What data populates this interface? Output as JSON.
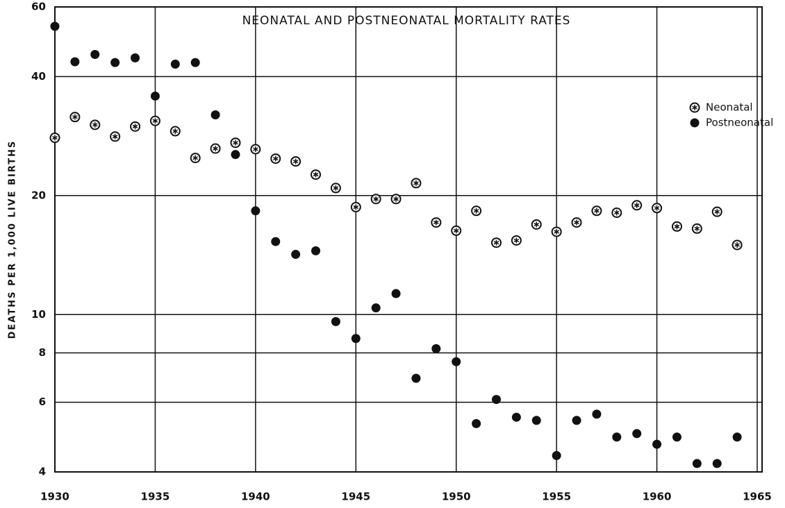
{
  "chart_data": {
    "type": "scatter",
    "title": "NEONATAL AND POSTNEONATAL MORTALITY RATES",
    "ylabel": "DEATHS PER 1,000 LIVE BIRTHS",
    "x": [
      1930,
      1931,
      1932,
      1933,
      1934,
      1935,
      1936,
      1937,
      1938,
      1939,
      1940,
      1941,
      1942,
      1943,
      1944,
      1945,
      1946,
      1947,
      1948,
      1949,
      1950,
      1951,
      1952,
      1953,
      1954,
      1955,
      1956,
      1957,
      1958,
      1959,
      1960,
      1961,
      1962,
      1963,
      1964
    ],
    "series": [
      {
        "name": "Neonatal",
        "color": "#111111",
        "marker": "open",
        "values": [
          28.0,
          31.6,
          30.2,
          28.2,
          29.9,
          30.9,
          29.1,
          24.9,
          26.3,
          27.2,
          26.2,
          24.8,
          24.4,
          22.6,
          20.9,
          18.7,
          19.6,
          19.6,
          21.5,
          17.1,
          16.3,
          18.3,
          15.2,
          15.4,
          16.9,
          16.2,
          17.1,
          18.3,
          18.1,
          18.9,
          18.6,
          16.7,
          16.5,
          18.2,
          15.0
        ]
      },
      {
        "name": "Postneonatal",
        "color": "#111111",
        "marker": "filled",
        "values": [
          53.6,
          43.6,
          45.5,
          43.4,
          44.6,
          35.7,
          43.0,
          43.4,
          32.0,
          25.4,
          18.3,
          15.3,
          14.2,
          14.5,
          9.6,
          8.7,
          10.4,
          11.3,
          6.9,
          8.2,
          7.6,
          5.3,
          6.1,
          5.5,
          5.4,
          4.4,
          5.4,
          5.6,
          4.9,
          5.0,
          4.7,
          4.9,
          4.2,
          4.2,
          4.9
        ]
      }
    ],
    "xlim": [
      1930,
      1965
    ],
    "xticks": [
      1930,
      1935,
      1940,
      1945,
      1950,
      1955,
      1960,
      1965
    ],
    "ylim": [
      4,
      60
    ],
    "yticks": [
      4,
      6,
      8,
      10,
      20,
      40,
      60
    ],
    "log_y": true,
    "grid": true,
    "legend": "upper right"
  }
}
